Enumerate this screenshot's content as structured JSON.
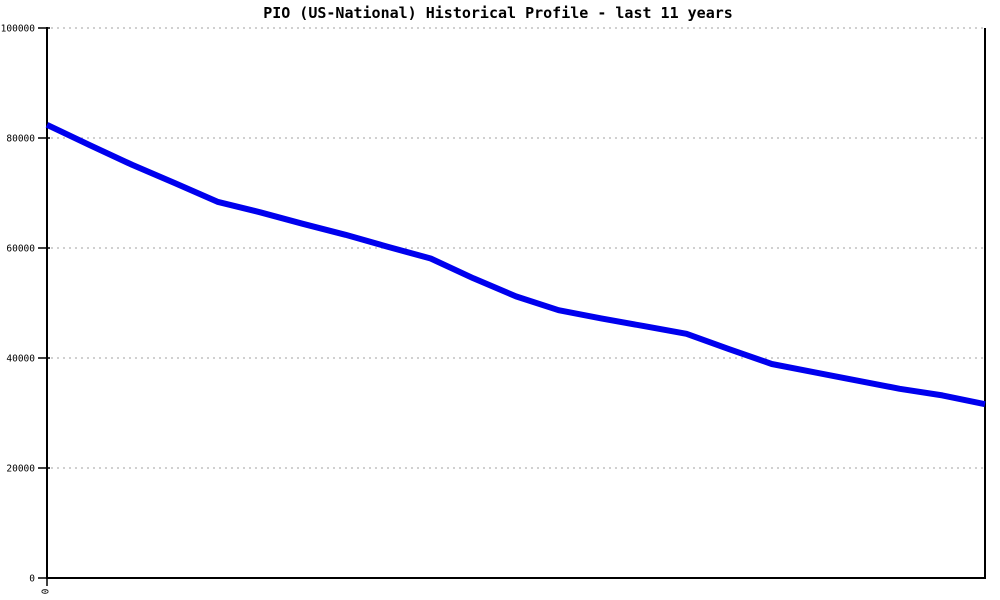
{
  "title": "PIO (US-National) Historical Profile - last 11 years",
  "chart_data": {
    "type": "line",
    "title": "PIO (US-National) Historical Profile - last 11 years",
    "xlabel": "",
    "ylabel": "",
    "x": [
      0,
      0.5,
      1,
      1.5,
      2,
      2.5,
      3,
      3.5,
      4,
      4.5,
      5,
      5.5,
      6,
      6.5,
      7,
      7.5,
      8,
      8.5,
      9,
      9.5,
      10,
      10.5,
      11
    ],
    "values": [
      82400,
      78700,
      75100,
      71800,
      68400,
      66500,
      64400,
      62400,
      60200,
      58100,
      54500,
      51200,
      48700,
      47200,
      45800,
      44400,
      41600,
      38900,
      37400,
      35900,
      34400,
      33200,
      31600
    ],
    "ylim": [
      0,
      100000
    ],
    "yticks": [
      0,
      20000,
      40000,
      60000,
      80000,
      100000
    ],
    "ytick_labels": [
      "0",
      "20000",
      "40000",
      "60000",
      "80000",
      "100000"
    ],
    "xtick_labels": [
      "0"
    ],
    "grid": "horizontal-dotted",
    "legend": "none",
    "line_color": "#0000ee",
    "grid_color": "#b3b3b3",
    "axis_color": "#000000",
    "background_color": "#ffffff"
  }
}
